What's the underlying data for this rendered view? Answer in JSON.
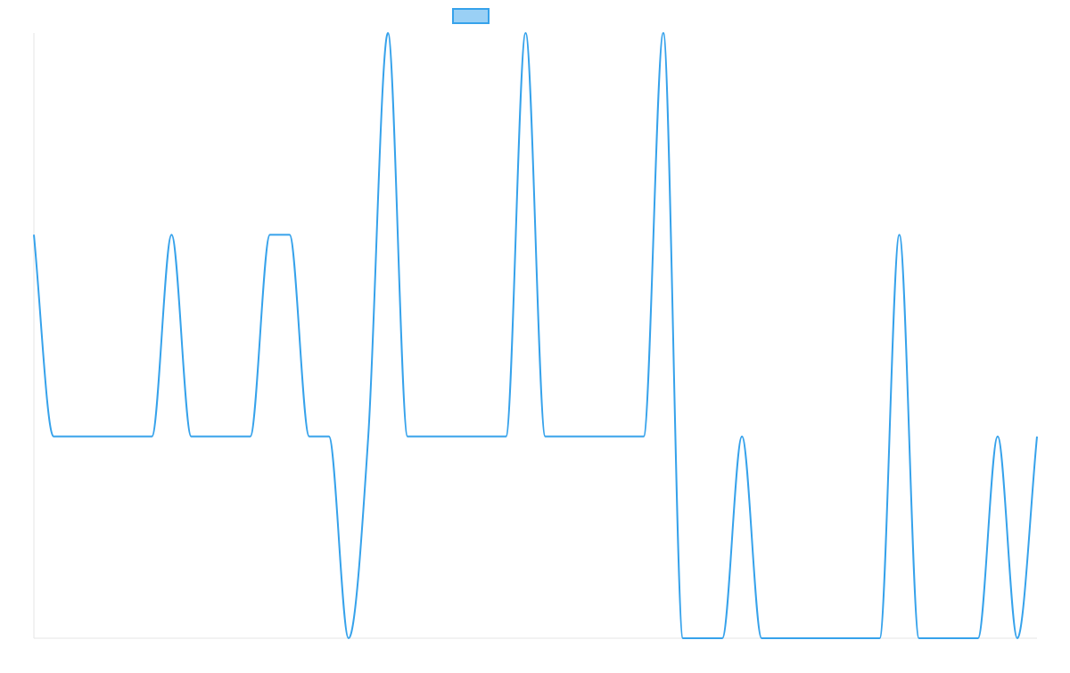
{
  "colors": {
    "series_stroke": "#36A2EB",
    "series_fill": "#9AD0F5",
    "axis": "#E5E5E5",
    "background": "#FFFFFF"
  },
  "chart_data": {
    "type": "line",
    "title": "",
    "xlabel": "",
    "ylabel": "",
    "grid": false,
    "legend": {
      "position": "top",
      "entries": [
        {
          "label": "",
          "color": "#36A2EB"
        }
      ]
    },
    "ylim": [
      -1,
      2
    ],
    "x": [
      0,
      1,
      2,
      3,
      4,
      5,
      6,
      7,
      8,
      9,
      10,
      11,
      12,
      13,
      14,
      15,
      16,
      17,
      18,
      19,
      20,
      21,
      22,
      23,
      24,
      25,
      26,
      27,
      28,
      29,
      30,
      31,
      32,
      33,
      34,
      35,
      36,
      37,
      38,
      39,
      40,
      41,
      42,
      43,
      44,
      45,
      46,
      47,
      48,
      49,
      50,
      51
    ],
    "series": [
      {
        "values": [
          1,
          0,
          0,
          0,
          0,
          0,
          0,
          1,
          0,
          0,
          0,
          0,
          1,
          1,
          0,
          0,
          -1,
          0,
          2,
          0,
          0,
          0,
          0,
          0,
          0,
          2,
          0,
          0,
          0,
          0,
          0,
          0,
          2,
          -1,
          -1,
          -1,
          0,
          -1,
          -1,
          -1,
          -1,
          -1,
          -1,
          -1,
          1,
          -1,
          -1,
          -1,
          -1,
          0,
          -1,
          0
        ]
      }
    ]
  }
}
